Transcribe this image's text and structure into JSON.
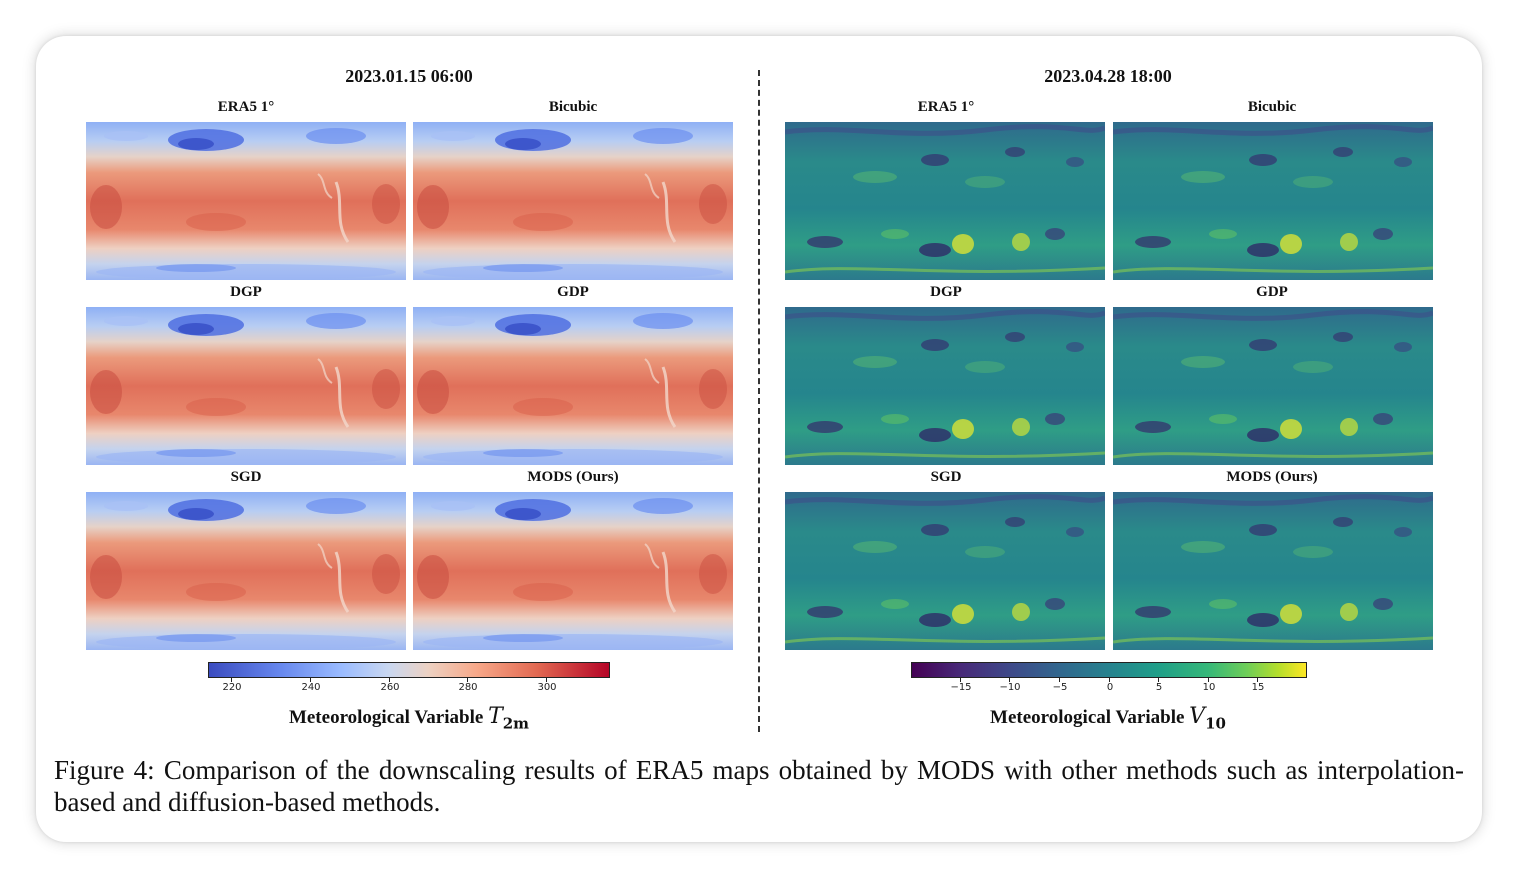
{
  "left_panel": {
    "date": "2023.01.15 06:00",
    "labels": [
      "ERA5 1°",
      "Bicubic",
      "DGP",
      "GDP",
      "SGD",
      "MODS (Ours)"
    ],
    "colorbar": {
      "colormap": "coolwarm",
      "ticks": [
        "220",
        "240",
        "260",
        "280",
        "300"
      ],
      "title_text": "Meteorological Variable",
      "var_symbol": "T",
      "var_subscript": "2m"
    }
  },
  "right_panel": {
    "date": "2023.04.28 18:00",
    "labels": [
      "ERA5 1°",
      "Bicubic",
      "DGP",
      "GDP",
      "SGD",
      "MODS (Ours)"
    ],
    "colorbar": {
      "colormap": "viridis",
      "ticks": [
        "−15",
        "−10",
        "−5",
        "0",
        "5",
        "10",
        "15"
      ],
      "title_text": "Meteorological Variable",
      "var_symbol": "V",
      "var_subscript": "10"
    }
  },
  "caption": "Figure 4: Comparison of the downscaling results of ERA5 maps obtained by MODS with other methods such as interpolation-based and diffusion-based methods."
}
